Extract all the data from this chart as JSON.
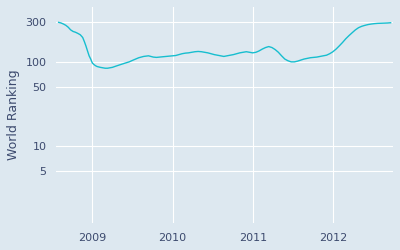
{
  "title": "",
  "ylabel": "World Ranking",
  "line_color": "#17becf",
  "background_color": "#dde8f0",
  "fig_color": "#dde8f0",
  "yticks": [
    5,
    10,
    50,
    100,
    300
  ],
  "ytick_labels": [
    "5",
    "10",
    "50",
    "100",
    "300"
  ],
  "xtick_positions": [
    2009,
    2010,
    2011,
    2012
  ],
  "xtick_labels": [
    "2009",
    "2010",
    "2011",
    "2012"
  ],
  "xlim": [
    2008.55,
    2012.75
  ],
  "ylim_log": [
    1.2,
    450
  ],
  "data_x": [
    2008.58,
    2008.61,
    2008.64,
    2008.67,
    2008.7,
    2008.73,
    2008.76,
    2008.79,
    2008.82,
    2008.85,
    2008.88,
    2008.9,
    2008.92,
    2008.94,
    2008.96,
    2008.98,
    2009.0,
    2009.02,
    2009.04,
    2009.06,
    2009.08,
    2009.1,
    2009.13,
    2009.16,
    2009.19,
    2009.22,
    2009.25,
    2009.28,
    2009.31,
    2009.34,
    2009.37,
    2009.4,
    2009.43,
    2009.46,
    2009.49,
    2009.52,
    2009.55,
    2009.58,
    2009.61,
    2009.64,
    2009.67,
    2009.7,
    2009.73,
    2009.76,
    2009.8,
    2009.84,
    2009.88,
    2009.92,
    2009.96,
    2010.0,
    2010.04,
    2010.08,
    2010.12,
    2010.16,
    2010.2,
    2010.24,
    2010.28,
    2010.32,
    2010.36,
    2010.4,
    2010.44,
    2010.48,
    2010.52,
    2010.56,
    2010.6,
    2010.64,
    2010.68,
    2010.72,
    2010.76,
    2010.8,
    2010.84,
    2010.88,
    2010.92,
    2010.96,
    2011.0,
    2011.04,
    2011.08,
    2011.12,
    2011.16,
    2011.2,
    2011.24,
    2011.28,
    2011.32,
    2011.36,
    2011.4,
    2011.44,
    2011.48,
    2011.52,
    2011.56,
    2011.6,
    2011.64,
    2011.68,
    2011.72,
    2011.76,
    2011.8,
    2011.84,
    2011.88,
    2011.92,
    2011.96,
    2012.0,
    2012.04,
    2012.08,
    2012.12,
    2012.16,
    2012.2,
    2012.24,
    2012.28,
    2012.32,
    2012.36,
    2012.4,
    2012.44,
    2012.48,
    2012.52,
    2012.56,
    2012.6,
    2012.64,
    2012.68,
    2012.72
  ],
  "data_y": [
    295,
    290,
    282,
    272,
    258,
    240,
    230,
    225,
    218,
    210,
    195,
    175,
    155,
    135,
    118,
    108,
    97,
    93,
    90,
    88,
    87,
    86,
    85,
    84,
    84,
    85,
    86,
    88,
    90,
    92,
    94,
    96,
    98,
    100,
    103,
    106,
    109,
    112,
    114,
    116,
    117,
    118,
    116,
    114,
    113,
    114,
    115,
    116,
    117,
    118,
    119,
    122,
    125,
    127,
    128,
    130,
    132,
    133,
    132,
    130,
    128,
    125,
    122,
    120,
    118,
    116,
    118,
    120,
    122,
    125,
    128,
    130,
    132,
    130,
    128,
    130,
    135,
    142,
    148,
    152,
    148,
    140,
    130,
    118,
    108,
    103,
    100,
    100,
    102,
    105,
    108,
    110,
    112,
    113,
    114,
    116,
    118,
    120,
    125,
    132,
    142,
    155,
    170,
    188,
    205,
    222,
    240,
    255,
    265,
    272,
    278,
    282,
    285,
    287,
    288,
    289,
    290,
    292
  ]
}
